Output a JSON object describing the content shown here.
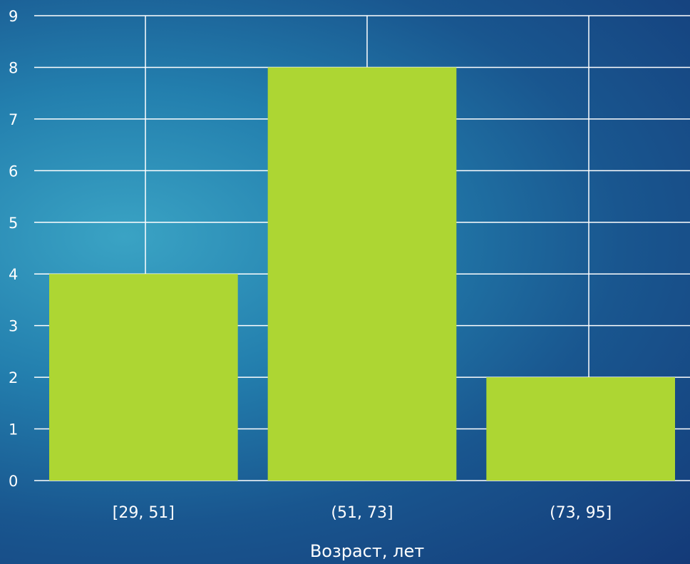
{
  "chart_data": {
    "type": "bar",
    "categories": [
      "[29, 51]",
      "(51, 73]",
      "(73, 95]"
    ],
    "values": [
      4,
      8,
      2
    ],
    "xlabel": "Возраст, лет",
    "ylabel": "",
    "ylim": [
      0,
      9
    ],
    "y_ticks": [
      "0",
      "1",
      "2",
      "3",
      "4",
      "5",
      "6",
      "7",
      "8",
      "9"
    ],
    "grid": true,
    "colors": {
      "bar": "#add633",
      "grid": "#ffffff",
      "text": "#ffffff"
    }
  }
}
